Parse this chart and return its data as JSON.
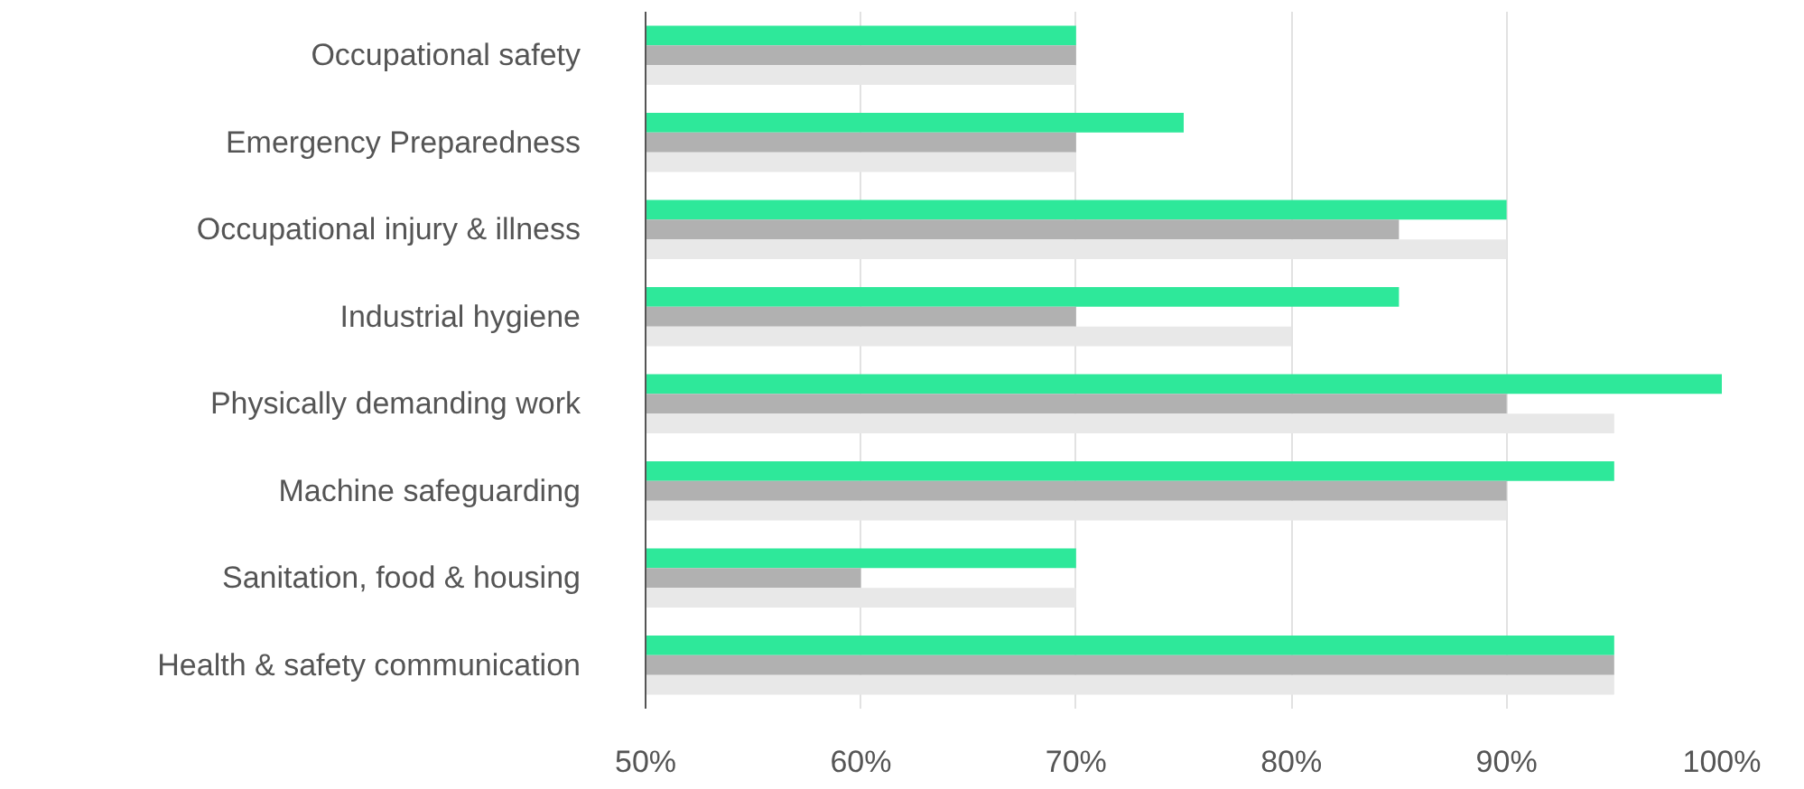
{
  "chart_data": {
    "type": "bar",
    "orientation": "horizontal",
    "categories": [
      "Occupational safety",
      "Emergency Preparedness",
      "Occupational injury & illness",
      "Industrial hygiene",
      "Physically demanding work",
      "Machine safeguarding",
      "Sanitation, food & housing",
      "Health & safety communication"
    ],
    "series": [
      {
        "color": "#2ee89a",
        "values": [
          70,
          75,
          90,
          85,
          100,
          95,
          70,
          95
        ]
      },
      {
        "color": "#b1b1b1",
        "values": [
          70,
          70,
          85,
          70,
          90,
          90,
          60,
          95
        ]
      },
      {
        "color": "#e8e8e8",
        "values": [
          70,
          70,
          90,
          80,
          95,
          90,
          70,
          95
        ]
      }
    ],
    "xlim": [
      50,
      100
    ],
    "xticks": [
      {
        "value": 50,
        "label": "50%"
      },
      {
        "value": 60,
        "label": "60%"
      },
      {
        "value": 70,
        "label": "70%"
      },
      {
        "value": 80,
        "label": "80%"
      },
      {
        "value": 90,
        "label": "90%"
      },
      {
        "value": 100,
        "label": "100%"
      }
    ],
    "grid": "x"
  }
}
